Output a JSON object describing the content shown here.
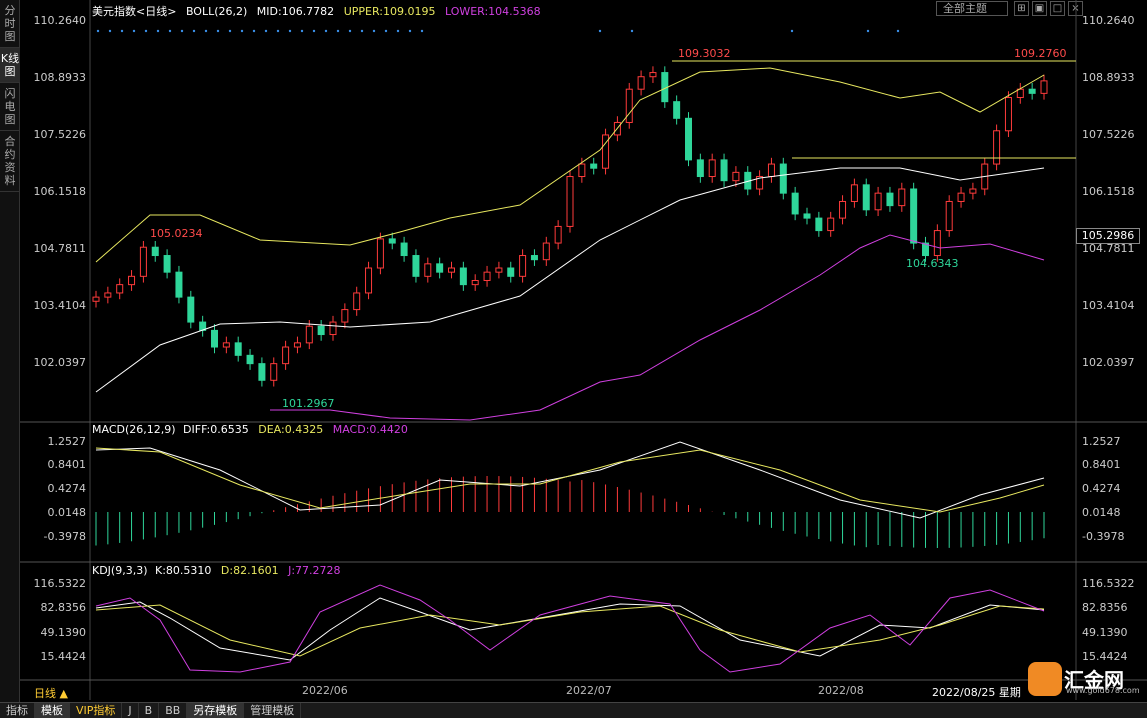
{
  "nav": {
    "tabs": [
      "分时图",
      "K线图",
      "闪电图",
      "合约资料"
    ]
  },
  "main": {
    "title": "美元指数<日线>",
    "indicator": "BOLL(26,2)",
    "mid": "MID:106.7782",
    "upper": "UPPER:109.0195",
    "lower": "LOWER:104.5368",
    "theme_button": "全部主题",
    "y_labels": [
      "110.2640",
      "108.8933",
      "107.5226",
      "106.1518",
      "104.7811",
      "103.4104",
      "102.0397"
    ],
    "current_price": "105.2986",
    "annotations": {
      "high1": "109.3032",
      "high2": "109.2760",
      "a1": "105.0234",
      "low1": "101.2967",
      "low2": "104.6343"
    }
  },
  "macd": {
    "title": "MACD(26,12,9)",
    "diff": "DIFF:0.6535",
    "dea": "DEA:0.4325",
    "macd": "MACD:0.4420",
    "y_labels": [
      "1.2527",
      "0.8401",
      "0.4274",
      "0.0148",
      "-0.3978"
    ]
  },
  "kdj": {
    "title": "KDJ(9,3,3)",
    "k": "K:80.5310",
    "d": "D:82.1601",
    "j": "J:77.2728",
    "y_labels": [
      "116.5322",
      "82.8356",
      "49.1390",
      "15.4424"
    ]
  },
  "x_axis": {
    "labels": [
      "2022/06",
      "2022/07",
      "2022/08",
      "2022/08/25 星期"
    ]
  },
  "period": "日线 ▲",
  "toolbar": [
    "指标",
    "模板",
    "VIP指标",
    "J",
    "B",
    "BB",
    "另存模板",
    "管理模板"
  ],
  "brand": {
    "name": "汇金网",
    "url": "www.gold678.com"
  },
  "colors": {
    "up": "#ff3b3b",
    "down": "#2fd69a",
    "upper": "#e8e860",
    "mid": "#ffffff",
    "lower": "#d040e0"
  }
}
